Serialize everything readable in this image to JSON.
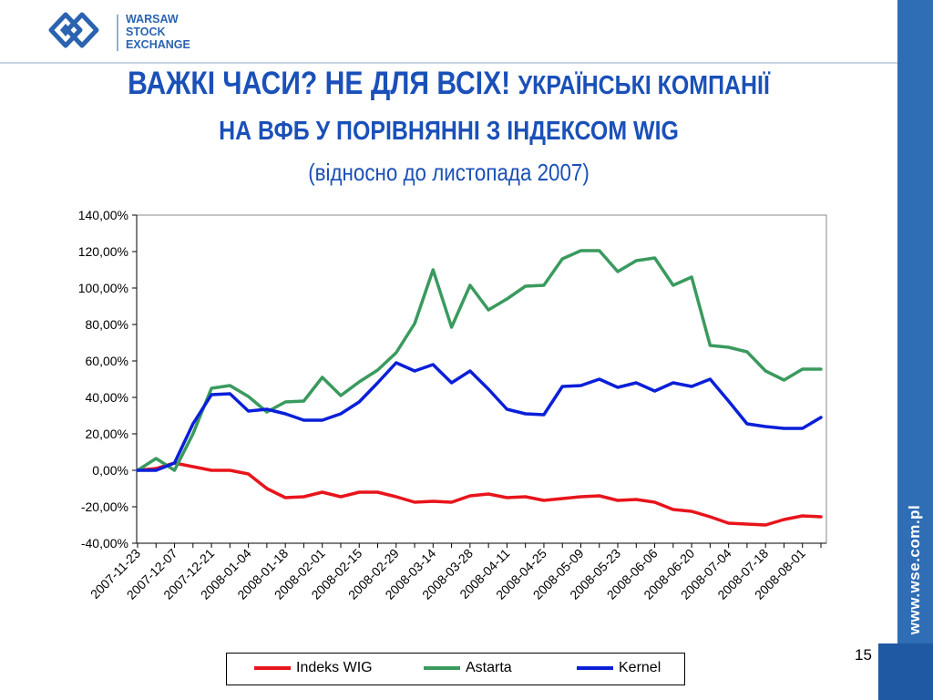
{
  "logo": {
    "lines": [
      "WARSAW",
      "STOCK",
      "EXCHANGE"
    ],
    "color": "#2a63b0"
  },
  "title": {
    "part1": "ВАЖКІ ЧАСИ? НЕ ДЛЯ ВСІХ!",
    "part2": "УКРАЇНСЬКІ КОМПАНІЇ",
    "line2": "НА ВФБ У ПОРІВНЯННІ З ІНДЕКСОМ WIG",
    "subtitle": "(відносно до листопада 2007)",
    "color": "#1a50b8"
  },
  "sidebar": {
    "url": "www.wse.com.pl",
    "color": "#2f6db5"
  },
  "page_number": "15",
  "chart_data": {
    "type": "line",
    "ylim": [
      -40,
      140
    ],
    "y_step": 20,
    "ytick_labels": [
      "140,00%",
      "120,00%",
      "100,00%",
      "80,00%",
      "60,00%",
      "40,00%",
      "20,00%",
      "0,00%",
      "-20,00%",
      "-40,00%"
    ],
    "x_tick_labels": [
      "2007-11-23",
      "2007-12-07",
      "2007-12-21",
      "2008-01-04",
      "2008-01-18",
      "2008-02-01",
      "2008-02-15",
      "2008-02-29",
      "2008-03-14",
      "2008-03-28",
      "2008-04-11",
      "2008-04-25",
      "2008-05-09",
      "2008-05-23",
      "2008-06-06",
      "2008-06-20",
      "2008-07-04",
      "2008-07-18",
      "2008-08-01"
    ],
    "legend_position": "bottom",
    "series": [
      {
        "name": "Indeks WIG",
        "color": "#e8141b",
        "values": [
          0,
          1,
          4,
          2,
          0,
          0,
          -2,
          -10,
          -15,
          -14.5,
          -12,
          -14.5,
          -12,
          -12,
          -14.5,
          -17.5,
          -17,
          -17.5,
          -14,
          -13,
          -15,
          -14.5,
          -16.5,
          -15.5,
          -14.5,
          -14,
          -16.5,
          -16,
          -17.5,
          -21.5,
          -22.5,
          -25.5,
          -29,
          -29.5,
          -30,
          -27,
          -25,
          -25.5
        ]
      },
      {
        "name": "Astarta",
        "color": "#3a9a5e",
        "values": [
          0,
          6.5,
          0,
          20,
          45,
          46.5,
          40.5,
          32,
          37.5,
          38,
          51,
          41,
          48.5,
          55,
          64.5,
          80.5,
          110,
          78.5,
          101.5,
          88,
          94,
          101,
          101.5,
          116,
          120.5,
          120.5,
          109,
          115,
          116.5,
          101.5,
          106,
          68.5,
          67.5,
          65,
          54.5,
          49.5,
          55.5,
          55.5
        ]
      },
      {
        "name": "Kernel",
        "color": "#0a1fd8",
        "values": [
          0,
          0,
          4,
          25.5,
          41.5,
          42,
          32.5,
          33.5,
          31,
          27.5,
          27.5,
          31,
          37.5,
          48,
          59,
          54.5,
          58,
          48,
          54.5,
          44.5,
          33.5,
          31,
          30.5,
          46,
          46.5,
          50,
          45.5,
          48,
          43.5,
          48,
          46,
          50,
          38,
          25.5,
          24,
          23,
          23,
          29
        ]
      }
    ]
  }
}
